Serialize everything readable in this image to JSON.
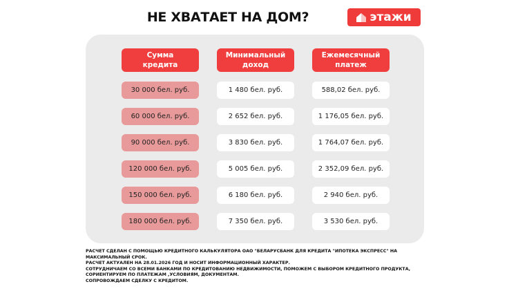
{
  "title": "НЕ ХВАТАЕТ НА ДОМ?",
  "logo": {
    "text": "этажи",
    "icon": "house-icon",
    "color": "#ef3b39"
  },
  "table": {
    "headers": [
      "Сумма\nкредита",
      "Минимальный\nдоход",
      "Ежемесячный\nплатеж"
    ],
    "rows": [
      [
        "30 000 бел. руб.",
        "1 480 бел. руб.",
        "588,02 бел. руб."
      ],
      [
        "60 000 бел. руб.",
        "2 652 бел. руб.",
        "1 176,05 бел. руб."
      ],
      [
        "90 000 бел. руб.",
        "3 830 бел. руб.",
        "1 764,07 бел. руб."
      ],
      [
        "120 000 бел. руб.",
        "5 005 бел. руб.",
        "2 352,09 бел. руб."
      ],
      [
        "150 000 бел. руб.",
        "6 180 бел. руб.",
        "2 940 бел. руб."
      ],
      [
        "180 000 бел. руб.",
        "7 350 бел. руб.",
        "3 530 бел. руб."
      ]
    ]
  },
  "footer": [
    "РАСЧЕТ СДЕЛАН С ПОМОЩЬЮ КРЕДИТНОГО КАЛЬКУЛЯТОРА ОАО \"БЕЛАРУСБАНК ДЛЯ КРЕДИТА \"ИПОТЕКА ЭКСПРЕСС\" НА МАКСИМАЛЬНЫЙ СРОК.",
    "РАСЧЕТ АКТУАЛЕН НА 28.01.2026 ГОД И НОСИТ ИНФОРМАЦИОННЫЙ ХАРАКТЕР.",
    "СОТРУДНИЧАЕМ СО ВСЕМИ БАНКАМИ ПО КРЕДИТОВАНИЮ НЕДВИЖИМОСТИ, ПОМОЖЕМ С ВЫБОРОМ КРЕДИТНОГО ПРОДУКТА, СОРИЕНТИРУЕМ ПО ПЛАТЕЖАМ ,УСЛОВИЯМ, ДОКУМЕНТАМ.",
    "СОПРОВОЖДАЕМ СДЕЛКУ С КРЕДИТОМ."
  ]
}
